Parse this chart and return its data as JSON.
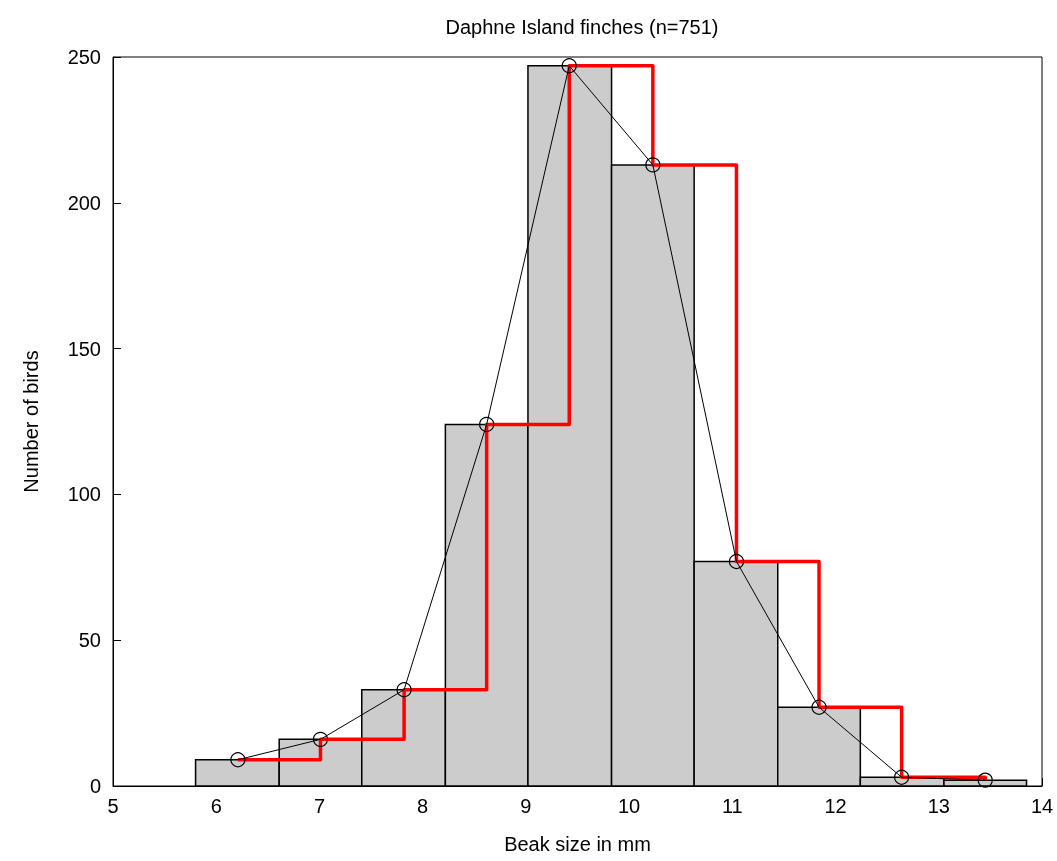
{
  "chart_data": {
    "type": "histogram",
    "title": "Daphne Island finches (n=751)",
    "xlabel": "Beak size in mm",
    "ylabel": "Number of birds",
    "xlim": [
      5,
      14
    ],
    "xticks": [
      5,
      6,
      7,
      8,
      9,
      10,
      11,
      12,
      13,
      14
    ],
    "ylim": [
      0,
      250
    ],
    "yticks": [
      0,
      50,
      100,
      150,
      200,
      250
    ],
    "grid": false,
    "series": [
      {
        "color": "#cccccc",
        "bins": [
          5.8,
          6.61,
          7.41,
          8.22,
          9.02,
          9.83,
          10.63,
          11.44,
          12.24,
          13.05,
          13.85
        ],
        "values": [
          9,
          16,
          33,
          124,
          247,
          213,
          77,
          27,
          3,
          2
        ]
      },
      {
        "type": "line",
        "color": "#000000",
        "marker": "circle",
        "x": [
          6.21,
          7.01,
          7.82,
          8.62,
          9.42,
          10.23,
          11.04,
          11.84,
          12.64,
          13.45
        ],
        "values": [
          9,
          16,
          33,
          124,
          247,
          213,
          77,
          27,
          3,
          2
        ]
      },
      {
        "type": "step",
        "color": "#ff0000",
        "x": [
          6.21,
          7.01,
          7.82,
          8.62,
          9.42,
          10.23,
          11.04,
          11.84,
          12.64,
          13.45
        ],
        "values": [
          9,
          16,
          33,
          124,
          247,
          213,
          77,
          27,
          3,
          2
        ]
      }
    ]
  }
}
